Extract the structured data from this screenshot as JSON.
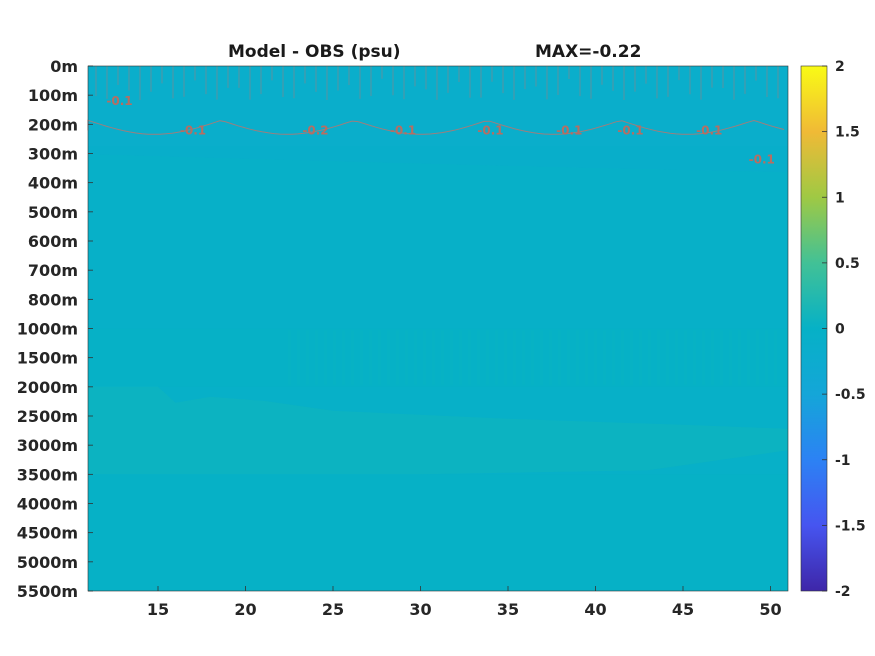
{
  "chart_data": {
    "type": "heatmap",
    "title": "Model - OBS (psu)",
    "subtitle": "MAX=-0.22",
    "xlabel": "",
    "ylabel": "",
    "x_ticks": [
      "15",
      "20",
      "25",
      "30",
      "35",
      "40",
      "45",
      "50"
    ],
    "x_tick_values": [
      15,
      20,
      25,
      30,
      35,
      40,
      45,
      50
    ],
    "xlim": [
      11,
      51
    ],
    "y_tick_labels": [
      "0m",
      "100m",
      "200m",
      "300m",
      "400m",
      "500m",
      "600m",
      "700m",
      "800m",
      "1000m",
      "1500m",
      "2000m",
      "2500m",
      "3000m",
      "3500m",
      "4000m",
      "4500m",
      "5000m",
      "5500m"
    ],
    "y_reversed": true,
    "colorbar": {
      "ticks": [
        "2",
        "1.5",
        "1",
        "0.5",
        "0",
        "-0.5",
        "-1",
        "-1.5",
        "-2"
      ],
      "range": [
        -2,
        2
      ],
      "colormap": "parula"
    },
    "contour_labels": [
      {
        "text": "-0.1",
        "x": 12.8,
        "depth": "100m"
      },
      {
        "text": "-0.1",
        "x": 17,
        "depth": "200m"
      },
      {
        "text": "-0.2",
        "x": 24,
        "depth": "200m"
      },
      {
        "text": "-0.1",
        "x": 29,
        "depth": "200m"
      },
      {
        "text": "-0.1",
        "x": 34,
        "depth": "200m"
      },
      {
        "text": "-0.1",
        "x": 38.5,
        "depth": "200m"
      },
      {
        "text": "-0.1",
        "x": 42,
        "depth": "200m"
      },
      {
        "text": "-0.1",
        "x": 46.5,
        "depth": "200m"
      },
      {
        "text": "-0.1",
        "x": 49.5,
        "depth": "300m"
      }
    ],
    "field_summary": {
      "near_surface": -0.15,
      "mid_depth": -0.05,
      "band_1000m_2000m": 0.0,
      "band_2000m_3500m": 0.05,
      "deep": 0.0
    },
    "grid": false
  }
}
